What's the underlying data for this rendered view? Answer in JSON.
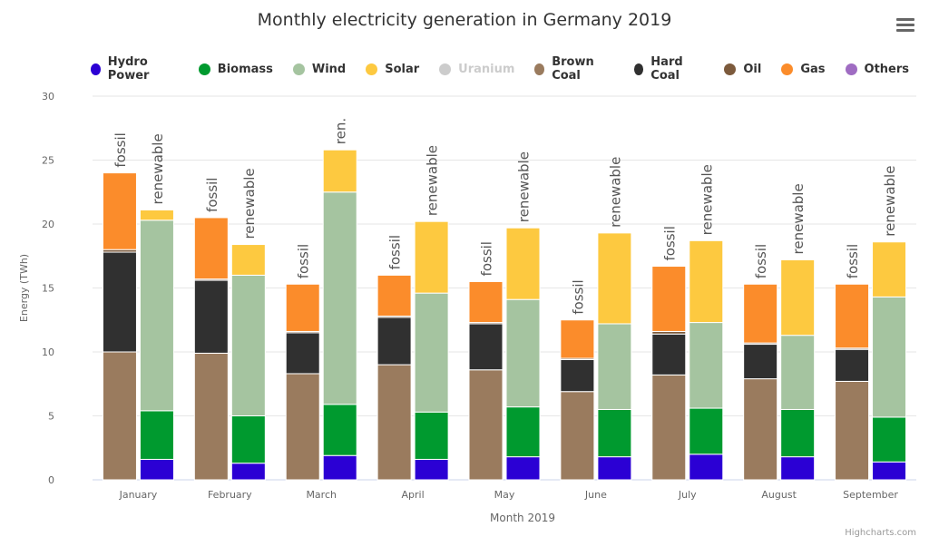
{
  "chart_data": {
    "type": "bar",
    "stacked": true,
    "title": "Monthly electricity generation in Germany 2019",
    "xlabel": "Month 2019",
    "ylabel": "Energy (TWh)",
    "ylim": [
      0,
      30
    ],
    "yticks": [
      0,
      5,
      10,
      15,
      20,
      25,
      30
    ],
    "grid": true,
    "legend_position": "top",
    "categories": [
      "January",
      "February",
      "March",
      "April",
      "May",
      "June",
      "July",
      "August",
      "September"
    ],
    "stacks": [
      {
        "key": "fossil",
        "labels": [
          "fossil",
          "fossil",
          "fossil",
          "fossil",
          "fossil",
          "fossil",
          "fossil",
          "fossil",
          "fossil"
        ]
      },
      {
        "key": "renewable",
        "labels": [
          "renewable",
          "renewable",
          "ren.",
          "renewable",
          "renewable",
          "renewable",
          "renewable",
          "renewable",
          "renewable"
        ]
      }
    ],
    "series": [
      {
        "name": "Hydro Power",
        "color": "#2b00d4",
        "stack": "renewable",
        "values": [
          1.6,
          1.3,
          1.9,
          1.6,
          1.8,
          1.8,
          2.0,
          1.8,
          1.4
        ]
      },
      {
        "name": "Biomass",
        "color": "#009a2f",
        "stack": "renewable",
        "values": [
          3.8,
          3.7,
          4.0,
          3.7,
          3.9,
          3.7,
          3.6,
          3.7,
          3.5
        ]
      },
      {
        "name": "Wind",
        "color": "#a5c4a0",
        "stack": "renewable",
        "values": [
          14.9,
          11.0,
          16.6,
          9.3,
          8.4,
          6.7,
          6.7,
          5.8,
          9.4
        ]
      },
      {
        "name": "Solar",
        "color": "#fdc940",
        "stack": "renewable",
        "values": [
          0.8,
          2.4,
          3.3,
          5.6,
          5.6,
          7.1,
          6.4,
          5.9,
          4.3
        ]
      },
      {
        "name": "Uranium",
        "color": "#cccccc",
        "stack": "fossil",
        "hidden": true,
        "values": []
      },
      {
        "name": "Brown Coal",
        "color": "#9a7b5e",
        "stack": "fossil",
        "values": [
          10.0,
          9.9,
          8.3,
          9.0,
          8.6,
          6.9,
          8.2,
          7.9,
          7.7
        ]
      },
      {
        "name": "Hard Coal",
        "color": "#303030",
        "stack": "fossil",
        "values": [
          7.8,
          5.7,
          3.2,
          3.7,
          3.6,
          2.5,
          3.2,
          2.7,
          2.5
        ]
      },
      {
        "name": "Oil",
        "color": "#7c5a3c",
        "stack": "fossil",
        "values": [
          0.2,
          0.1,
          0.1,
          0.1,
          0.1,
          0.1,
          0.2,
          0.1,
          0.1
        ]
      },
      {
        "name": "Gas",
        "color": "#fb8c2b",
        "stack": "fossil",
        "values": [
          6.0,
          4.8,
          3.7,
          3.2,
          3.2,
          3.0,
          5.1,
          4.6,
          5.0
        ]
      },
      {
        "name": "Others",
        "color": "#9f6cc2",
        "stack": "fossil",
        "values": []
      }
    ]
  },
  "ui": {
    "menu_icon": "hamburger-menu-icon",
    "credit": "Highcharts.com"
  }
}
